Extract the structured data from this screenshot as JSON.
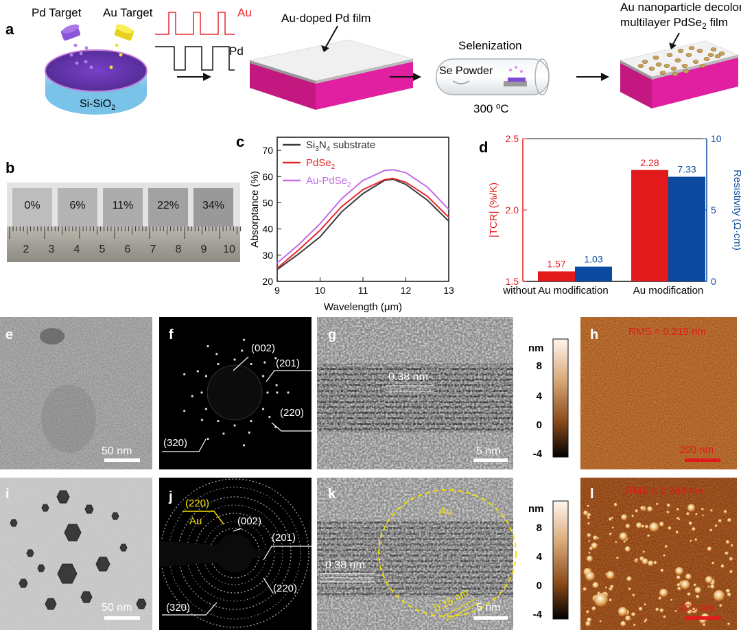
{
  "panel_a": {
    "letter": "a",
    "pd_target": "Pd Target",
    "au_target": "Au Target",
    "pulse_au": "Au",
    "pulse_pd": "Pd",
    "substrate": "Si-SiO",
    "substrate_sub": "2",
    "film_label": "Au-doped Pd film",
    "selenization": "Selenization",
    "se_powder": "Se Powder",
    "temperature": "300 ºC",
    "final_line1": "Au nanoparticle decolorated",
    "final_line2_pre": "multilayer PdSe",
    "final_line2_sub": "2",
    "final_line2_post": " film",
    "colors": {
      "au_pulse": "#e8272b",
      "pd_pulse": "#111111",
      "film_top": "#f2f2f2",
      "film_side": "#c2187f",
      "target_pd": "#8a55d6",
      "target_au": "#f1e02a"
    }
  },
  "panel_b": {
    "letter": "b",
    "samples": [
      "0%",
      "6%",
      "11%",
      "22%",
      "34%"
    ],
    "ruler_ticks": [
      "2",
      "3",
      "4",
      "5",
      "6",
      "7",
      "8",
      "9",
      "10"
    ]
  },
  "chart_data": [
    {
      "panel": "c",
      "type": "line",
      "title": "",
      "xlabel": "Wavelength (μm)",
      "ylabel": "Absorptance (%)",
      "xlim": [
        9,
        13
      ],
      "ylim": [
        20,
        75
      ],
      "xticks": [
        "9",
        "10",
        "11",
        "12",
        "13"
      ],
      "yticks": [
        "20",
        "30",
        "40",
        "50",
        "60",
        "70"
      ],
      "legend_position": "top-left",
      "x": [
        9.0,
        9.5,
        10.0,
        10.5,
        11.0,
        11.5,
        11.7,
        12.0,
        12.5,
        13.0
      ],
      "series": [
        {
          "name": "Si3N4 substrate",
          "label_pre": "Si",
          "label_sub1": "3",
          "label_mid": "N",
          "label_sub2": "4",
          "label_post": " substrate",
          "color": "#3a3a3a",
          "values": [
            24.5,
            30.5,
            37.0,
            46.5,
            53.5,
            58.5,
            59.0,
            57.0,
            51.0,
            43.0
          ]
        },
        {
          "name": "PdSe2",
          "label_pre": "PdSe",
          "label_sub1": "2",
          "color": "#e8272b",
          "values": [
            25.0,
            32.0,
            39.5,
            48.5,
            55.0,
            58.8,
            59.3,
            57.8,
            52.5,
            44.5
          ]
        },
        {
          "name": "Au-PdSe2",
          "label_pre": "Au-PdSe",
          "label_sub1": "2",
          "color": "#c26de8",
          "values": [
            27.0,
            34.0,
            42.0,
            51.5,
            58.5,
            62.3,
            62.6,
            61.5,
            56.0,
            47.5
          ]
        }
      ]
    },
    {
      "panel": "d",
      "type": "bar",
      "title": "",
      "categories": [
        "without Au modification",
        "Au modification"
      ],
      "ylabel_left": "|TCR| (%/K)",
      "ylabel_right": "Resistivity (Ω·cm)",
      "ylim_left": [
        1.5,
        2.5
      ],
      "ylim_right": [
        0,
        10
      ],
      "yticks_left": [
        "1.5",
        "2.0",
        "2.5"
      ],
      "yticks_right": [
        "0",
        "5",
        "10"
      ],
      "series": [
        {
          "name": "|TCR|",
          "axis": "left",
          "color": "#e31a1c",
          "values": [
            1.57,
            2.28
          ],
          "labels": [
            "1.57",
            "2.28"
          ]
        },
        {
          "name": "Resistivity",
          "axis": "right",
          "color": "#0b4a9e",
          "values": [
            1.03,
            7.33
          ],
          "labels": [
            "1.03",
            "7.33"
          ]
        }
      ]
    }
  ],
  "panel_c": {
    "letter": "c"
  },
  "panel_d": {
    "letter": "d"
  },
  "panel_e": {
    "letter": "e",
    "scale": "50 nm"
  },
  "panel_f": {
    "letter": "f",
    "labels": [
      "(002)",
      "(201)",
      "(220)",
      "(320)"
    ]
  },
  "panel_g": {
    "letter": "g",
    "spacing": "0.38 nm",
    "scale": "5 nm"
  },
  "colorbar_1": {
    "unit": "nm",
    "ticks": [
      "8",
      "4",
      "0",
      "-4"
    ]
  },
  "panel_h": {
    "letter": "h",
    "rms": "RMS = 0.219 nm",
    "scale": "200 nm"
  },
  "panel_i": {
    "letter": "i",
    "scale": "50 nm"
  },
  "panel_j": {
    "letter": "j",
    "au_ring": "(220)",
    "au_label": "Au",
    "labels": [
      "(002)",
      "(201)",
      "(220)",
      "(320)"
    ]
  },
  "panel_k": {
    "letter": "k",
    "spacing": "0.38 nm",
    "au_label": "Au",
    "au_spacing": "0.15 nm",
    "scale": "5 nm"
  },
  "colorbar_2": {
    "unit": "nm",
    "ticks": [
      "8",
      "4",
      "0",
      "-4"
    ]
  },
  "panel_l": {
    "letter": "l",
    "rms": "RMS = 2.344 nm",
    "scale": "200 nm"
  }
}
